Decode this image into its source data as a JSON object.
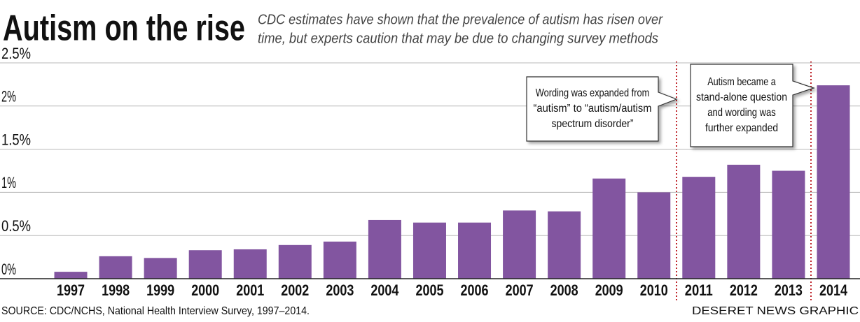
{
  "chart_data": {
    "type": "bar",
    "title": "Autism on the rise",
    "subtitle": [
      "CDC estimates have shown that the prevalence of autism has risen over",
      "time, but experts caution that may be due to changing survey methods"
    ],
    "categories": [
      "1997",
      "1998",
      "1999",
      "2000",
      "2001",
      "2002",
      "2003",
      "2004",
      "2005",
      "2006",
      "2007",
      "2008",
      "2009",
      "2010",
      "2011",
      "2012",
      "2013",
      "2014"
    ],
    "values": [
      0.08,
      0.26,
      0.24,
      0.33,
      0.34,
      0.39,
      0.43,
      0.68,
      0.65,
      0.65,
      0.79,
      0.78,
      1.16,
      1.0,
      1.18,
      1.32,
      1.25,
      2.24
    ],
    "color": "#8255a0",
    "ylim": [
      0,
      2.5
    ],
    "yticks": [
      {
        "value": 0,
        "label": "0%"
      },
      {
        "value": 0.5,
        "label": "0.5%"
      },
      {
        "value": 1,
        "label": "1%"
      },
      {
        "value": 1.5,
        "label": "1.5%"
      },
      {
        "value": 2,
        "label": "2%"
      },
      {
        "value": 2.5,
        "label": "2.5%"
      }
    ],
    "grid": true,
    "annotations": [
      [
        "Wording was expanded from",
        "“autism” to “autism/autism",
        "spectrum disorder”"
      ],
      [
        "Autism became a",
        "stand-alone question",
        "and wording was",
        "further expanded"
      ]
    ],
    "source": "SOURCE: CDC/NCHS, National Health Interview Survey, 1997–2014.",
    "credit": "DESERET NEWS GRAPHIC"
  }
}
